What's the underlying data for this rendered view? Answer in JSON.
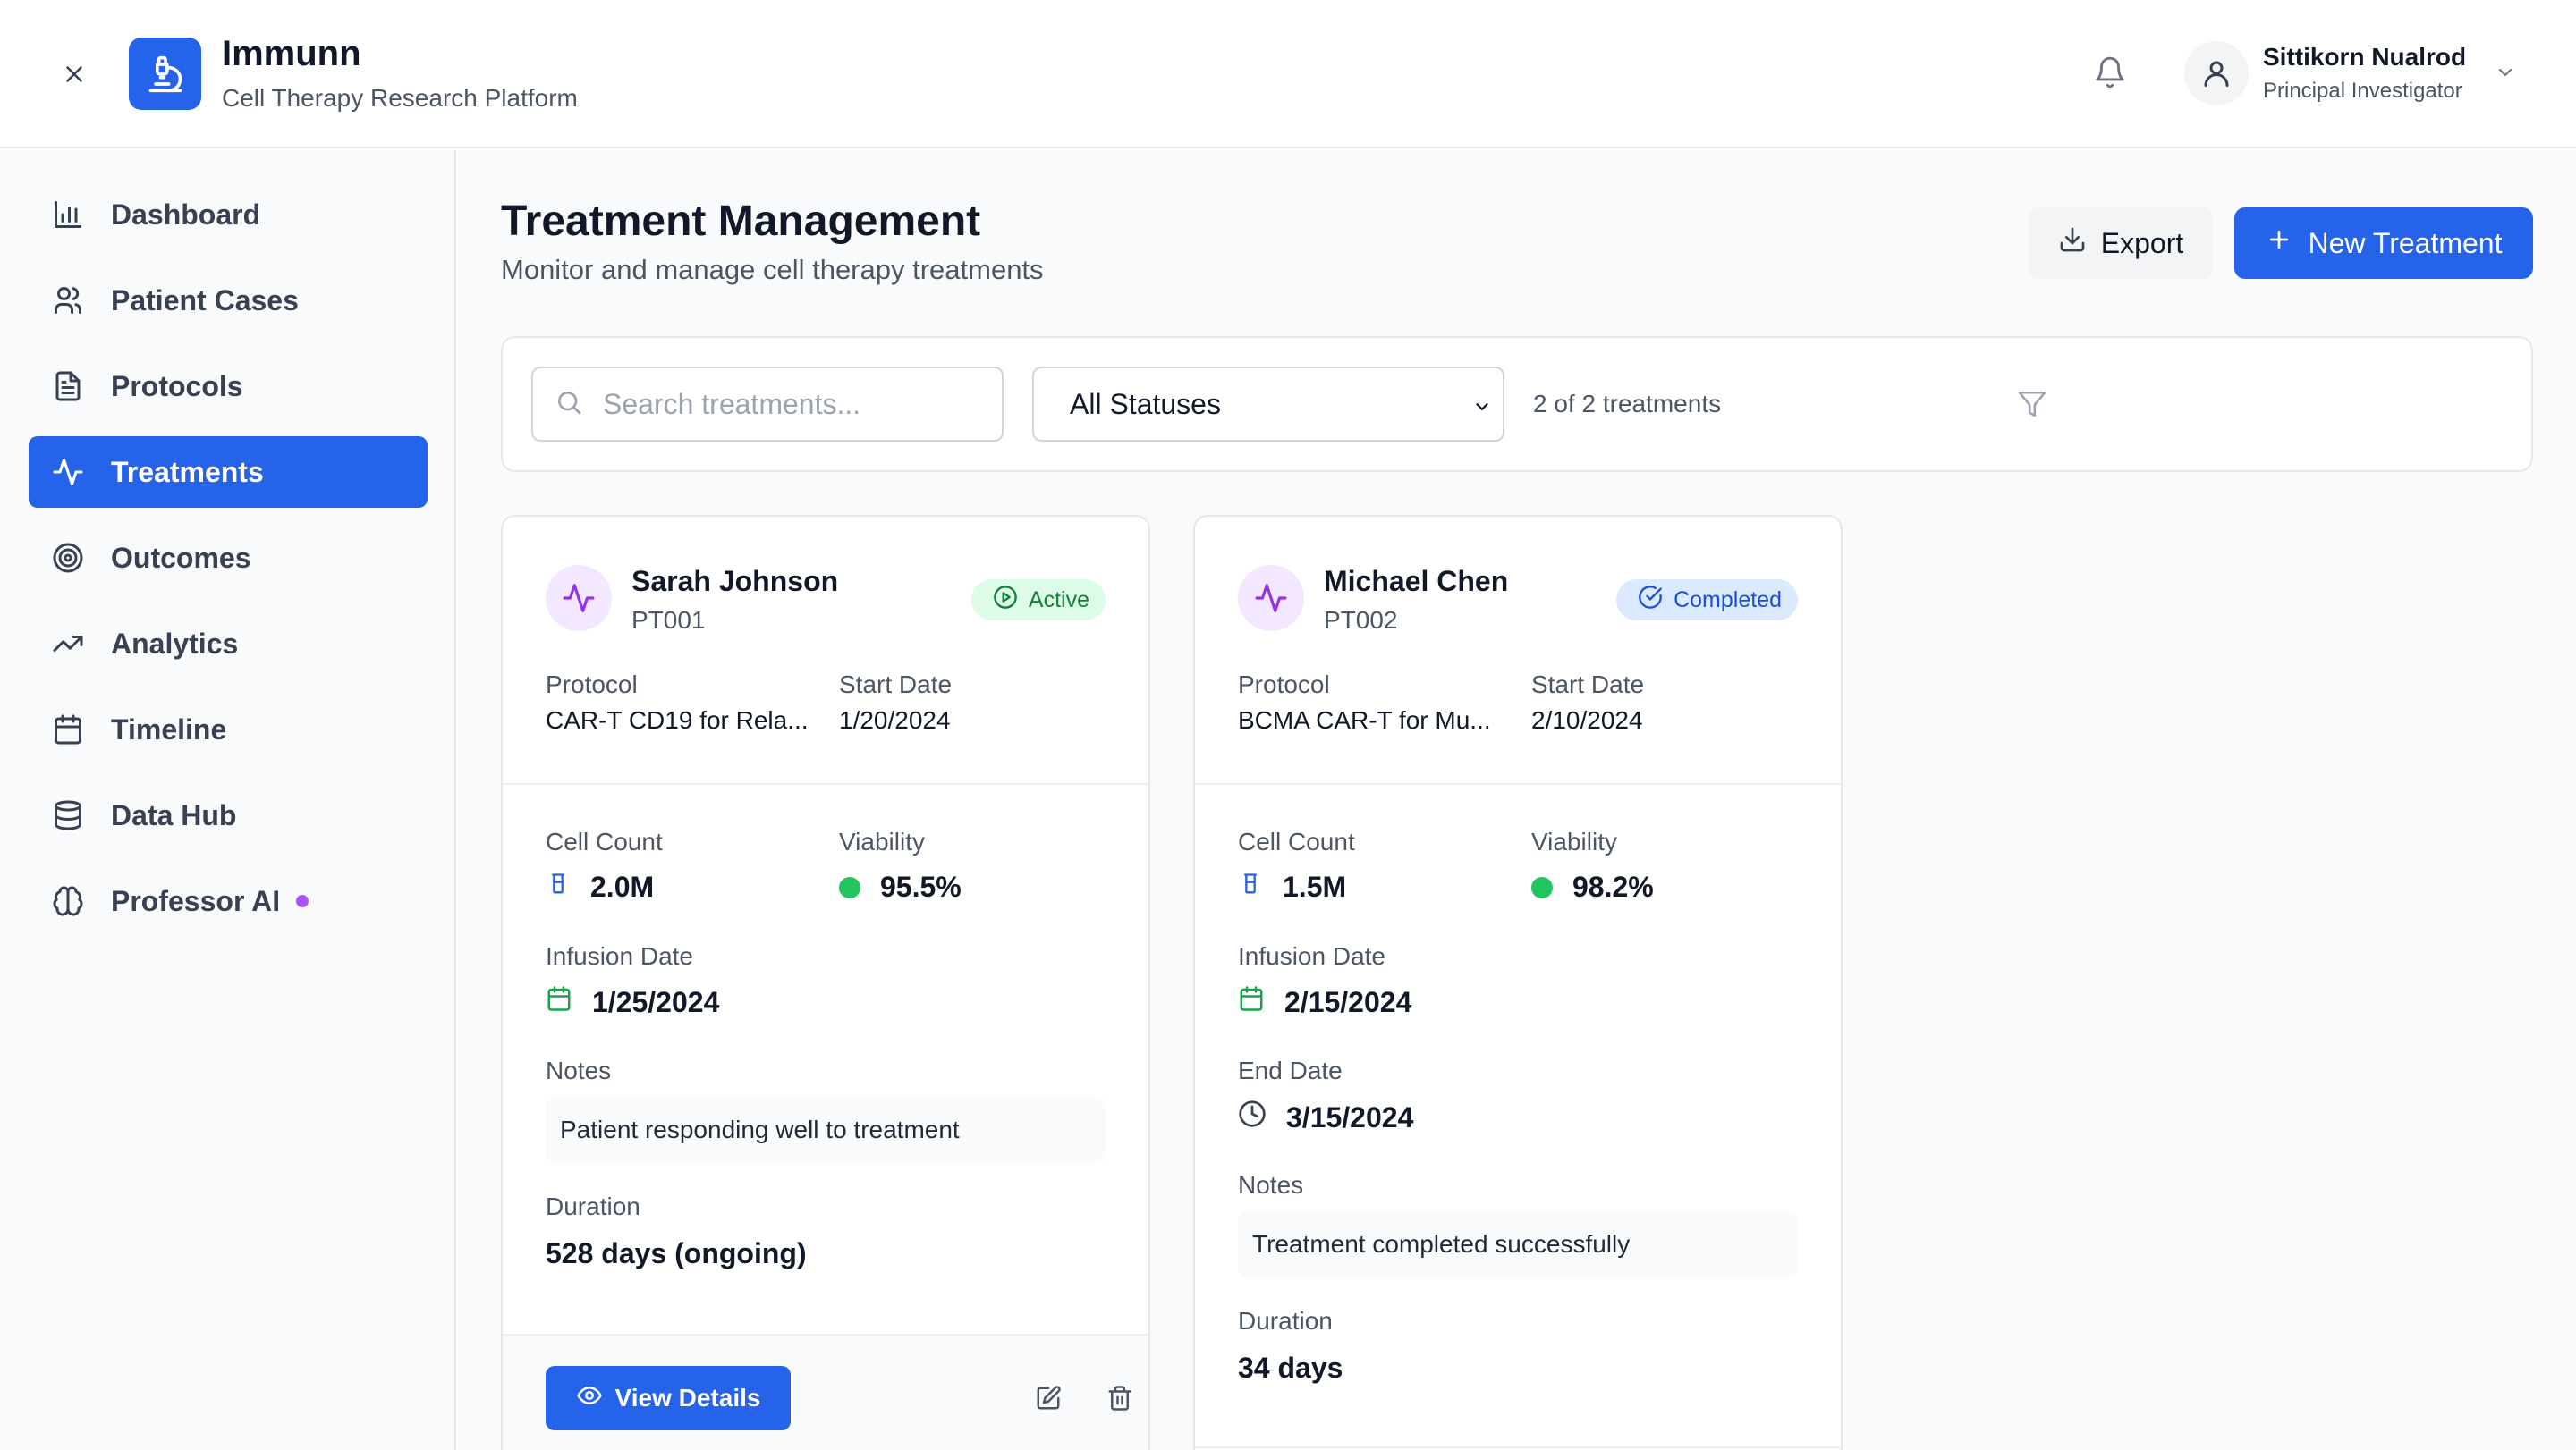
{
  "header": {
    "app_name": "Immunn",
    "app_subtitle": "Cell Therapy Research Platform",
    "user_name": "Sittikorn Nualrod",
    "user_role": "Principal Investigator"
  },
  "sidebar": {
    "items": [
      {
        "label": "Dashboard",
        "icon": "bar-chart-icon"
      },
      {
        "label": "Patient Cases",
        "icon": "users-icon"
      },
      {
        "label": "Protocols",
        "icon": "document-icon"
      },
      {
        "label": "Treatments",
        "icon": "activity-icon",
        "active": true
      },
      {
        "label": "Outcomes",
        "icon": "target-icon"
      },
      {
        "label": "Analytics",
        "icon": "trending-up-icon"
      },
      {
        "label": "Timeline",
        "icon": "calendar-icon"
      },
      {
        "label": "Data Hub",
        "icon": "database-icon"
      },
      {
        "label": "Professor AI",
        "icon": "brain-icon"
      }
    ]
  },
  "page": {
    "title": "Treatment Management",
    "subtitle": "Monitor and manage cell therapy treatments",
    "export_label": "Export",
    "new_label": "New Treatment"
  },
  "filters": {
    "search_placeholder": "Search treatments...",
    "status_value": "All Statuses",
    "count_text": "2 of 2 treatments"
  },
  "labels": {
    "protocol": "Protocol",
    "start_date": "Start Date",
    "cell_count": "Cell Count",
    "viability": "Viability",
    "infusion_date": "Infusion Date",
    "end_date": "End Date",
    "notes": "Notes",
    "duration": "Duration",
    "view_details": "View Details"
  },
  "treatments": [
    {
      "name": "Sarah Johnson",
      "id": "PT001",
      "status": "Active",
      "protocol": "CAR-T CD19 for Rela...",
      "start_date": "1/20/2024",
      "cell_count": "2.0M",
      "viability": "95.5%",
      "infusion_date": "1/25/2024",
      "notes": "Patient responding well to treatment",
      "duration": "528 days (ongoing)"
    },
    {
      "name": "Michael Chen",
      "id": "PT002",
      "status": "Completed",
      "protocol": "BCMA CAR-T for Mu...",
      "start_date": "2/10/2024",
      "cell_count": "1.5M",
      "viability": "98.2%",
      "infusion_date": "2/15/2024",
      "end_date": "3/15/2024",
      "notes": "Treatment completed successfully",
      "duration": "34 days"
    }
  ],
  "colors": {
    "primary": "#2563eb",
    "active_badge": "#15803d",
    "completed_badge": "#1d4ed8",
    "viability_dot": "#22c55e",
    "ai_dot": "#a855f7"
  }
}
